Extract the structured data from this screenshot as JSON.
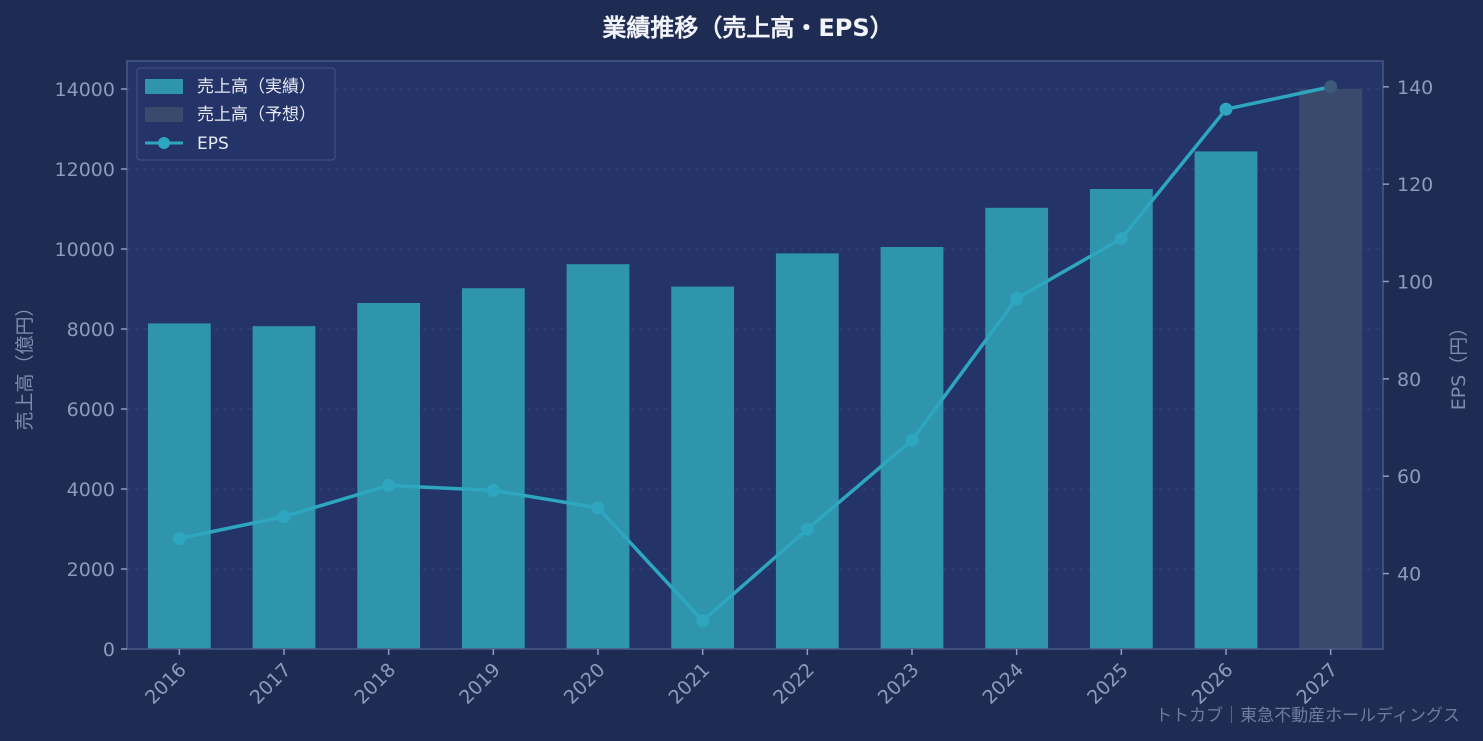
{
  "chart_data": {
    "type": "bar",
    "title": "業績推移（売上高・EPS）",
    "categories": [
      "2016",
      "2017",
      "2018",
      "2019",
      "2020",
      "2021",
      "2022",
      "2023",
      "2024",
      "2025",
      "2026",
      "2027"
    ],
    "series": [
      {
        "name": "売上高（実績）",
        "kind": "bar",
        "axis": "left",
        "color": "#2e95ad",
        "values": [
          8140,
          8070,
          8650,
          9020,
          9620,
          9060,
          9890,
          10050,
          11030,
          11500,
          12440,
          null
        ]
      },
      {
        "name": "売上高（予想）",
        "kind": "bar",
        "axis": "left",
        "color": "#3a4a6c",
        "values": [
          null,
          null,
          null,
          null,
          null,
          null,
          null,
          null,
          null,
          null,
          null,
          14000
        ]
      },
      {
        "name": "EPS",
        "kind": "line",
        "axis": "right",
        "color": "#2ea6c0",
        "values": [
          47.2,
          51.7,
          58.1,
          57.1,
          53.5,
          30.3,
          49.1,
          67.4,
          96.5,
          108.8,
          135.4,
          140.0
        ]
      }
    ],
    "y_left": {
      "label": "売上高（億円）",
      "lim": [
        0,
        14700
      ],
      "ticks": [
        0,
        2000,
        4000,
        6000,
        8000,
        10000,
        12000,
        14000
      ]
    },
    "y_right": {
      "label": "EPS（円）",
      "lim": [
        24.5,
        145.3
      ],
      "ticks": [
        40,
        60,
        80,
        100,
        120,
        140
      ]
    },
    "grid": true,
    "legend": "top-left"
  },
  "watermark": "トトカブ｜東急不動産ホールディングス",
  "colors": {
    "background": "#1e2b52",
    "plot_background": "#243468",
    "axis": "#4a5a85",
    "grid": "#34447a"
  }
}
